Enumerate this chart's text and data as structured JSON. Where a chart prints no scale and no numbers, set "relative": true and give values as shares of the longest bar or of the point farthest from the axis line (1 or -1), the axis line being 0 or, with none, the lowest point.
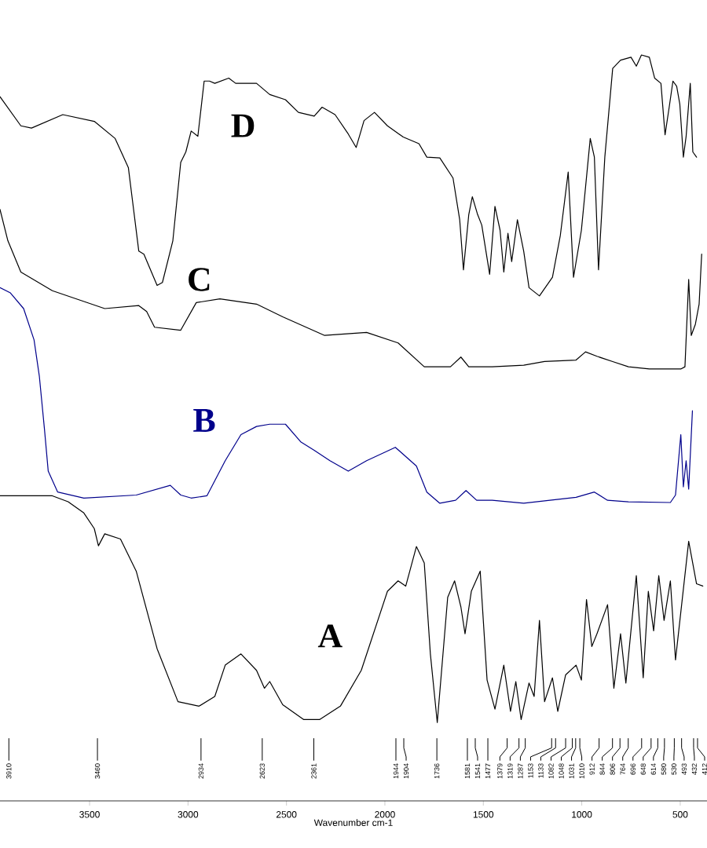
{
  "chart_data": {
    "type": "line",
    "relative": true,
    "xlabel": "Wavenumber cm-1",
    "xlim": [
      3955,
      364
    ],
    "xticks": [
      3500,
      3000,
      2500,
      2000,
      1500,
      1000,
      500
    ],
    "tick_labels": "x",
    "series": [
      {
        "name": "A",
        "color": "#000000",
        "x": [
          3955,
          3689,
          3609,
          3529,
          3476,
          3455,
          3423,
          3343,
          3263,
          3157,
          3051,
          2944,
          2864,
          2811,
          2731,
          2652,
          2612,
          2585,
          2519,
          2412,
          2332,
          2226,
          2120,
          1987,
          1933,
          1894,
          1840,
          1800,
          1769,
          1734,
          1681,
          1646,
          1614,
          1593,
          1561,
          1516,
          1481,
          1441,
          1396,
          1362,
          1335,
          1308,
          1268,
          1242,
          1215,
          1189,
          1149,
          1122,
          1082,
          1029,
          1002,
          976,
          949,
          923,
          869,
          837,
          803,
          776,
          723,
          688,
          662,
          635,
          609,
          582,
          550,
          524,
          497,
          457,
          417,
          385
        ],
        "values": [
          0.409,
          0.409,
          0.401,
          0.386,
          0.365,
          0.342,
          0.358,
          0.351,
          0.308,
          0.204,
          0.133,
          0.127,
          0.14,
          0.182,
          0.197,
          0.175,
          0.151,
          0.16,
          0.129,
          0.109,
          0.109,
          0.127,
          0.175,
          0.281,
          0.295,
          0.288,
          0.341,
          0.319,
          0.197,
          0.105,
          0.273,
          0.295,
          0.26,
          0.224,
          0.281,
          0.308,
          0.162,
          0.123,
          0.182,
          0.12,
          0.16,
          0.109,
          0.158,
          0.14,
          0.242,
          0.133,
          0.165,
          0.12,
          0.169,
          0.182,
          0.162,
          0.27,
          0.207,
          0.224,
          0.263,
          0.151,
          0.224,
          0.158,
          0.302,
          0.165,
          0.281,
          0.228,
          0.302,
          0.242,
          0.295,
          0.189,
          0.253,
          0.348,
          0.291,
          0.288
        ]
      },
      {
        "name": "B",
        "color": "#00008b",
        "x": [
          3955,
          3902,
          3835,
          3782,
          3755,
          3729,
          3710,
          3662,
          3529,
          3263,
          3090,
          3037,
          2984,
          2904,
          2811,
          2731,
          2652,
          2585,
          2505,
          2426,
          2359,
          2279,
          2186,
          2093,
          1947,
          1840,
          1787,
          1721,
          1641,
          1588,
          1534,
          1455,
          1295,
          1162,
          1029,
          936,
          869,
          763,
          550,
          524,
          497,
          484,
          470,
          457,
          438
        ],
        "values": [
          0.688,
          0.681,
          0.66,
          0.618,
          0.569,
          0.498,
          0.442,
          0.414,
          0.406,
          0.41,
          0.423,
          0.41,
          0.406,
          0.409,
          0.456,
          0.491,
          0.502,
          0.505,
          0.505,
          0.481,
          0.47,
          0.456,
          0.442,
          0.456,
          0.474,
          0.449,
          0.414,
          0.399,
          0.403,
          0.416,
          0.403,
          0.403,
          0.399,
          0.403,
          0.407,
          0.414,
          0.403,
          0.401,
          0.4,
          0.41,
          0.491,
          0.421,
          0.456,
          0.418,
          0.523
        ]
      },
      {
        "name": "C",
        "color": "#000000",
        "x": [
          3955,
          3915,
          3849,
          3689,
          3423,
          3250,
          3210,
          3170,
          3037,
          2958,
          2838,
          2652,
          2519,
          2306,
          2093,
          1933,
          1800,
          1667,
          1614,
          1574,
          1455,
          1295,
          1189,
          1029,
          981,
          923,
          843,
          763,
          657,
          497,
          476,
          457,
          444,
          423,
          404,
          391
        ],
        "values": [
          0.793,
          0.751,
          0.709,
          0.684,
          0.66,
          0.664,
          0.656,
          0.635,
          0.631,
          0.668,
          0.673,
          0.666,
          0.649,
          0.624,
          0.628,
          0.614,
          0.582,
          0.582,
          0.595,
          0.582,
          0.582,
          0.584,
          0.589,
          0.591,
          0.602,
          0.596,
          0.589,
          0.582,
          0.579,
          0.579,
          0.582,
          0.699,
          0.624,
          0.639,
          0.666,
          0.733
        ]
      },
      {
        "name": "D",
        "color": "#000000",
        "x": [
          3955,
          3849,
          3795,
          3636,
          3476,
          3370,
          3303,
          3250,
          3224,
          3157,
          3130,
          3077,
          3037,
          3011,
          2984,
          2950,
          2918,
          2891,
          2864,
          2793,
          2758,
          2652,
          2585,
          2505,
          2439,
          2359,
          2319,
          2253,
          2186,
          2146,
          2106,
          2053,
          1987,
          1907,
          1827,
          1787,
          1721,
          1654,
          1620,
          1601,
          1574,
          1556,
          1529,
          1508,
          1468,
          1441,
          1415,
          1396,
          1375,
          1356,
          1327,
          1295,
          1268,
          1215,
          1149,
          1109,
          1069,
          1042,
          1002,
          957,
          936,
          915,
          883,
          843,
          803,
          750,
          723,
          697,
          657,
          630,
          598,
          577,
          556,
          537,
          518,
          502,
          484,
          470,
          449,
          436,
          417
        ],
        "values": [
          0.944,
          0.905,
          0.902,
          0.92,
          0.911,
          0.888,
          0.849,
          0.737,
          0.733,
          0.691,
          0.695,
          0.751,
          0.856,
          0.87,
          0.898,
          0.891,
          0.965,
          0.965,
          0.962,
          0.969,
          0.962,
          0.962,
          0.947,
          0.94,
          0.923,
          0.918,
          0.93,
          0.92,
          0.894,
          0.876,
          0.912,
          0.923,
          0.905,
          0.89,
          0.881,
          0.863,
          0.862,
          0.835,
          0.779,
          0.712,
          0.786,
          0.81,
          0.786,
          0.772,
          0.706,
          0.797,
          0.765,
          0.709,
          0.761,
          0.723,
          0.779,
          0.737,
          0.688,
          0.677,
          0.702,
          0.758,
          0.843,
          0.702,
          0.765,
          0.888,
          0.863,
          0.712,
          0.863,
          0.982,
          0.993,
          0.997,
          0.985,
          1.0,
          0.997,
          0.969,
          0.962,
          0.893,
          0.93,
          0.965,
          0.958,
          0.934,
          0.863,
          0.891,
          0.962,
          0.87,
          0.863
        ]
      }
    ],
    "annotations": [
      {
        "text": "3910",
        "x": 3910
      },
      {
        "text": "3460",
        "x": 3460
      },
      {
        "text": "2934",
        "x": 2934
      },
      {
        "text": "2623",
        "x": 2623
      },
      {
        "text": "2361",
        "x": 2361
      },
      {
        "text": "1944",
        "x": 1944
      },
      {
        "text": "1904",
        "x": 1904
      },
      {
        "text": "1736",
        "x": 1736
      },
      {
        "text": "1581",
        "x": 1581
      },
      {
        "text": "1541",
        "x": 1541
      },
      {
        "text": "1477",
        "x": 1477
      },
      {
        "text": "1379",
        "x": 1379
      },
      {
        "text": "1319",
        "x": 1319
      },
      {
        "text": "1287",
        "x": 1287
      },
      {
        "text": "1153",
        "x": 1153
      },
      {
        "text": "1133",
        "x": 1133
      },
      {
        "text": "1082",
        "x": 1082
      },
      {
        "text": "1048",
        "x": 1048
      },
      {
        "text": "1031",
        "x": 1031
      },
      {
        "text": "1010",
        "x": 1010
      },
      {
        "text": "912",
        "x": 912
      },
      {
        "text": "844",
        "x": 844
      },
      {
        "text": "806",
        "x": 806
      },
      {
        "text": "764",
        "x": 764
      },
      {
        "text": "696",
        "x": 696
      },
      {
        "text": "648",
        "x": 648
      },
      {
        "text": "614",
        "x": 614
      },
      {
        "text": "580",
        "x": 580
      },
      {
        "text": "530",
        "x": 530
      },
      {
        "text": "493",
        "x": 493
      },
      {
        "text": "432",
        "x": 432
      },
      {
        "text": "412",
        "x": 412
      }
    ]
  }
}
